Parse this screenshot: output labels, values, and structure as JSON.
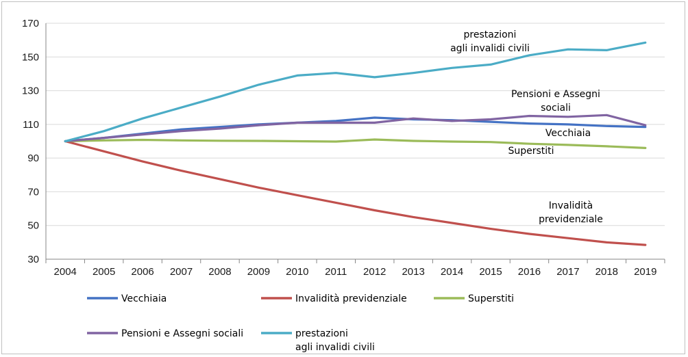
{
  "chart_data": {
    "type": "line",
    "x": [
      "2004",
      "2005",
      "2006",
      "2007",
      "2008",
      "2009",
      "2010",
      "2011",
      "2012",
      "2013",
      "2014",
      "2015",
      "2016",
      "2017",
      "2018",
      "2019"
    ],
    "ylim": [
      30,
      170
    ],
    "yticks": [
      "30",
      "50",
      "70",
      "90",
      "110",
      "130",
      "150",
      "170"
    ],
    "grid": true,
    "legend_position": "bottom",
    "series": [
      {
        "name": "Vecchiaia",
        "color": "#4472c4",
        "values": [
          100,
          102,
          104.5,
          107,
          108.5,
          110,
          111,
          112,
          114,
          113,
          112.5,
          111.5,
          110.5,
          110,
          109,
          108.5
        ]
      },
      {
        "name": "Invalidità previdenziale",
        "color": "#c0504d",
        "values": [
          100,
          94,
          88,
          82.5,
          77.5,
          72.5,
          68,
          63.5,
          59,
          55,
          51.5,
          48,
          45,
          42.5,
          40,
          38.5
        ]
      },
      {
        "name": "Superstiti",
        "color": "#9bbb59",
        "values": [
          100,
          100.5,
          100.8,
          100.5,
          100.3,
          100.2,
          100,
          99.8,
          101,
          100.2,
          99.8,
          99.5,
          98.5,
          97.8,
          97,
          96
        ]
      },
      {
        "name": "Pensioni e Assegni sociali",
        "color": "#8064a2",
        "values": [
          100,
          102,
          104,
          106,
          107.5,
          109.5,
          111,
          111,
          111,
          113.5,
          112,
          113,
          115,
          114.5,
          115.5,
          109.5
        ]
      },
      {
        "name": "prestazioni agli invalidi civili",
        "label_lines": [
          "prestazioni",
          "agli invalidi civili"
        ],
        "color": "#4bacc6",
        "values": [
          100,
          106,
          113.5,
          120,
          126.5,
          133.5,
          139,
          140.5,
          138,
          140.5,
          143.5,
          145.5,
          151,
          154.5,
          154,
          158.5
        ]
      }
    ],
    "annotations": [
      {
        "series": "prestazioni agli invalidi civili",
        "lines": [
          "prestazioni",
          "agli invalidi civili"
        ]
      },
      {
        "series": "Pensioni e Assegni sociali",
        "lines": [
          "Pensioni e Assegni",
          "sociali"
        ]
      },
      {
        "series": "Vecchiaia",
        "lines": [
          "Vecchiaia"
        ]
      },
      {
        "series": "Superstiti",
        "lines": [
          "Superstiti"
        ]
      },
      {
        "series": "Invalidità previdenziale",
        "lines": [
          "Invalidità",
          "previdenziale"
        ]
      }
    ]
  }
}
